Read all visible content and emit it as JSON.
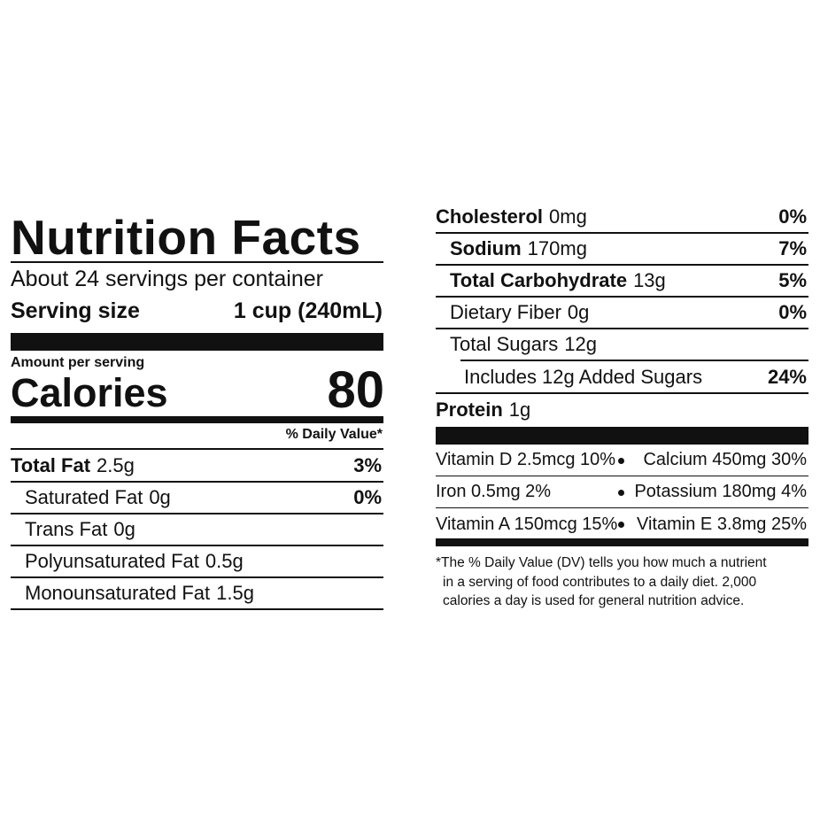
{
  "left": {
    "title": "Nutrition Facts",
    "servings": "About 24 servings per container",
    "serving_size_label": "Serving size",
    "serving_size": "1 cup (240mL)",
    "amount_per_serving": "Amount per serving",
    "calories_label": "Calories",
    "calories": 80,
    "dv_header": "% Daily Value*",
    "nutrients": [
      {
        "name": "Total Fat",
        "amount": "2.5g",
        "dv": "3%"
      },
      {
        "name": "Saturated Fat",
        "amount": "0g",
        "dv": "0%"
      },
      {
        "name": "Trans Fat",
        "amount": "0g"
      },
      {
        "name": "Polyunsaturated Fat",
        "amount": "0.5g"
      },
      {
        "name": "Monounsaturated Fat",
        "amount": "1.5g"
      }
    ]
  },
  "right": {
    "nutrients": [
      {
        "name": "Cholesterol",
        "amount": "0mg",
        "dv": "0%"
      },
      {
        "name": "Sodium",
        "amount": "170mg",
        "dv": "7%"
      },
      {
        "name": "Total Carbohydrate",
        "amount": "13g",
        "dv": "5%"
      },
      {
        "name": "Dietary Fiber",
        "amount": "0g",
        "dv": "0%"
      },
      {
        "name": "Total Sugars",
        "amount": "12g"
      },
      {
        "name": "Includes 12g Added Sugars",
        "dv": "24%"
      },
      {
        "name": "Protein",
        "amount": "1g"
      }
    ],
    "vitamins": [
      [
        "Vitamin D 2.5mcg 10%",
        "Calcium 450mg 30%"
      ],
      [
        "Iron 0.5mg 2%",
        "Potassium 180mg 4%"
      ],
      [
        "Vitamin A 150mcg 15%",
        "Vitamin E 3.8mg 25%"
      ]
    ],
    "footnote": [
      "*The % Daily Value (DV) tells you how much a nutrient",
      "in a serving of food contributes to a daily diet. 2,000",
      "calories a day is used for general nutrition advice."
    ]
  }
}
